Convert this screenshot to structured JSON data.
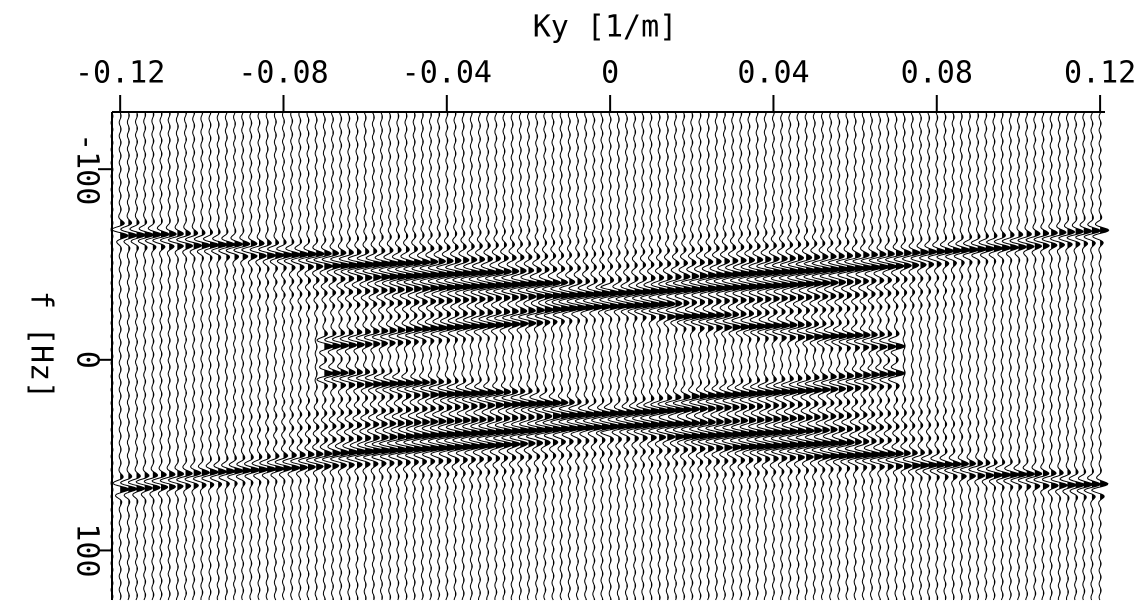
{
  "chart_data": {
    "type": "wiggle",
    "xlabel": "Ky [1/m]",
    "ylabel": "f [Hz]",
    "xlim": [
      -0.122,
      0.1212
    ],
    "ylim": [
      -130,
      126
    ],
    "xticks": [
      -0.12,
      -0.08,
      -0.04,
      0,
      0.04,
      0.08,
      0.12
    ],
    "yticks": [
      -100,
      0,
      100
    ],
    "trace_spacing": 0.002,
    "color": "#000000",
    "events": [
      {
        "x": [
          -0.12,
          0
        ],
        "y": [
          -67,
          -32
        ]
      },
      {
        "x": [
          0,
          0.12
        ],
        "y": [
          -32,
          -67
        ]
      },
      {
        "x": [
          -0.12,
          0
        ],
        "y": [
          67,
          32
        ]
      },
      {
        "x": [
          0,
          0.12
        ],
        "y": [
          32,
          67
        ]
      },
      {
        "x": [
          -0.07,
          -0.02,
          0
        ],
        "y": [
          -8,
          -22,
          -32
        ]
      },
      {
        "x": [
          0,
          0.02,
          0.07
        ],
        "y": [
          -32,
          -22,
          -8
        ]
      },
      {
        "x": [
          -0.07,
          -0.02,
          0
        ],
        "y": [
          8,
          22,
          32
        ]
      },
      {
        "x": [
          0,
          0.02,
          0.07
        ],
        "y": [
          32,
          22,
          8
        ]
      }
    ],
    "energy": [
      {
        "x": -0.04,
        "y": -42
      },
      {
        "x": 0.04,
        "y": -42
      },
      {
        "x": -0.04,
        "y": 38
      },
      {
        "x": 0.04,
        "y": 38
      }
    ]
  }
}
